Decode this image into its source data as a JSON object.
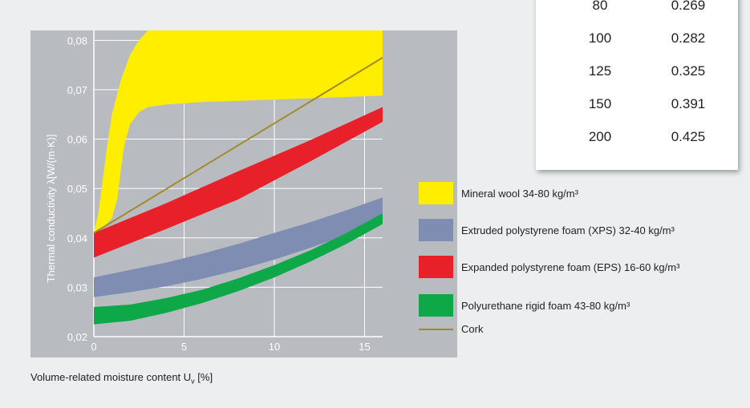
{
  "table": {
    "rows": [
      {
        "density": "80",
        "value": "0.269"
      },
      {
        "density": "100",
        "value": "0.282"
      },
      {
        "density": "125",
        "value": "0.325"
      },
      {
        "density": "150",
        "value": "0.391"
      },
      {
        "density": "200",
        "value": "0.425"
      }
    ]
  },
  "chart_data": {
    "type": "area",
    "xlabel_main": "Volume-related moisture content U",
    "xlabel_sub": "v",
    "xlabel_unit": " [%]",
    "ylabel": "Thermal conductivity   λ[W/(m·K)]",
    "xlim": [
      0,
      16
    ],
    "ylim": [
      0.02,
      0.082
    ],
    "xticks": [
      0,
      5,
      10,
      15
    ],
    "xtick_labels": [
      "0",
      "5",
      "10",
      "15"
    ],
    "yticks": [
      0.02,
      0.03,
      0.04,
      0.05,
      0.06,
      0.07,
      0.08
    ],
    "ytick_labels": [
      "0,02",
      "0,03",
      "0,04",
      "0,05",
      "0,06",
      "0,07",
      "0,08"
    ],
    "grid": true,
    "legend_position": "right",
    "colors": {
      "plot_bg": "#b8bcc1",
      "grid": "#ffffff",
      "mineral_wool": "#ffee00",
      "xps": "#7f8db3",
      "eps": "#e8202a",
      "pur": "#0fa848",
      "cork": "#a28a2a"
    },
    "series": [
      {
        "name": "Mineral wool 34-80 kg/m³",
        "kind": "band",
        "color_key": "mineral_wool",
        "upper": [
          [
            0,
            0.041
          ],
          [
            0.25,
            0.045
          ],
          [
            0.5,
            0.052
          ],
          [
            0.75,
            0.059
          ],
          [
            1,
            0.065
          ],
          [
            1.5,
            0.072
          ],
          [
            2,
            0.077
          ],
          [
            2.5,
            0.08
          ],
          [
            3,
            0.082
          ],
          [
            16,
            0.082
          ]
        ],
        "lower": [
          [
            0,
            0.041
          ],
          [
            0.5,
            0.042
          ],
          [
            1,
            0.044
          ],
          [
            1.3,
            0.048
          ],
          [
            1.5,
            0.054
          ],
          [
            1.7,
            0.059
          ],
          [
            2,
            0.063
          ],
          [
            2.5,
            0.0655
          ],
          [
            3,
            0.0665
          ],
          [
            4,
            0.067
          ],
          [
            6,
            0.0675
          ],
          [
            10,
            0.068
          ],
          [
            16,
            0.0688
          ]
        ]
      },
      {
        "name": "Extruded polystyrene foam (XPS) 32-40 kg/m³",
        "kind": "band",
        "color_key": "xps",
        "upper": [
          [
            0,
            0.032
          ],
          [
            2,
            0.0335
          ],
          [
            4,
            0.035
          ],
          [
            6,
            0.0368
          ],
          [
            8,
            0.0388
          ],
          [
            10,
            0.041
          ],
          [
            12,
            0.0432
          ],
          [
            14,
            0.0456
          ],
          [
            16,
            0.0482
          ]
        ],
        "lower": [
          [
            0,
            0.028
          ],
          [
            2,
            0.029
          ],
          [
            4,
            0.0302
          ],
          [
            6,
            0.0317
          ],
          [
            8,
            0.0335
          ],
          [
            10,
            0.0356
          ],
          [
            12,
            0.038
          ],
          [
            14,
            0.0406
          ],
          [
            16,
            0.0434
          ]
        ]
      },
      {
        "name": "Expanded polystyrene foam (EPS) 16-60 kg/m³",
        "kind": "band",
        "color_key": "eps",
        "upper": [
          [
            0,
            0.041
          ],
          [
            4,
            0.047
          ],
          [
            8,
            0.0535
          ],
          [
            12,
            0.0598
          ],
          [
            16,
            0.0665
          ]
        ],
        "lower": [
          [
            0,
            0.036
          ],
          [
            4,
            0.0418
          ],
          [
            8,
            0.0478
          ],
          [
            12,
            0.0555
          ],
          [
            16,
            0.0635
          ]
        ]
      },
      {
        "name": "Polyurethane rigid foam 43-80 kg/m³",
        "kind": "band",
        "color_key": "pur",
        "upper": [
          [
            0,
            0.026
          ],
          [
            2,
            0.0265
          ],
          [
            4,
            0.0278
          ],
          [
            6,
            0.0295
          ],
          [
            8,
            0.0318
          ],
          [
            10,
            0.0345
          ],
          [
            12,
            0.0375
          ],
          [
            14,
            0.041
          ],
          [
            16,
            0.045
          ]
        ],
        "lower": [
          [
            0,
            0.0225
          ],
          [
            2,
            0.0232
          ],
          [
            4,
            0.0248
          ],
          [
            6,
            0.0268
          ],
          [
            8,
            0.0292
          ],
          [
            10,
            0.032
          ],
          [
            12,
            0.0352
          ],
          [
            14,
            0.0388
          ],
          [
            16,
            0.0428
          ]
        ]
      },
      {
        "name": "Cork",
        "kind": "line",
        "color_key": "cork",
        "points": [
          [
            0,
            0.041
          ],
          [
            16,
            0.0765
          ]
        ]
      }
    ]
  }
}
